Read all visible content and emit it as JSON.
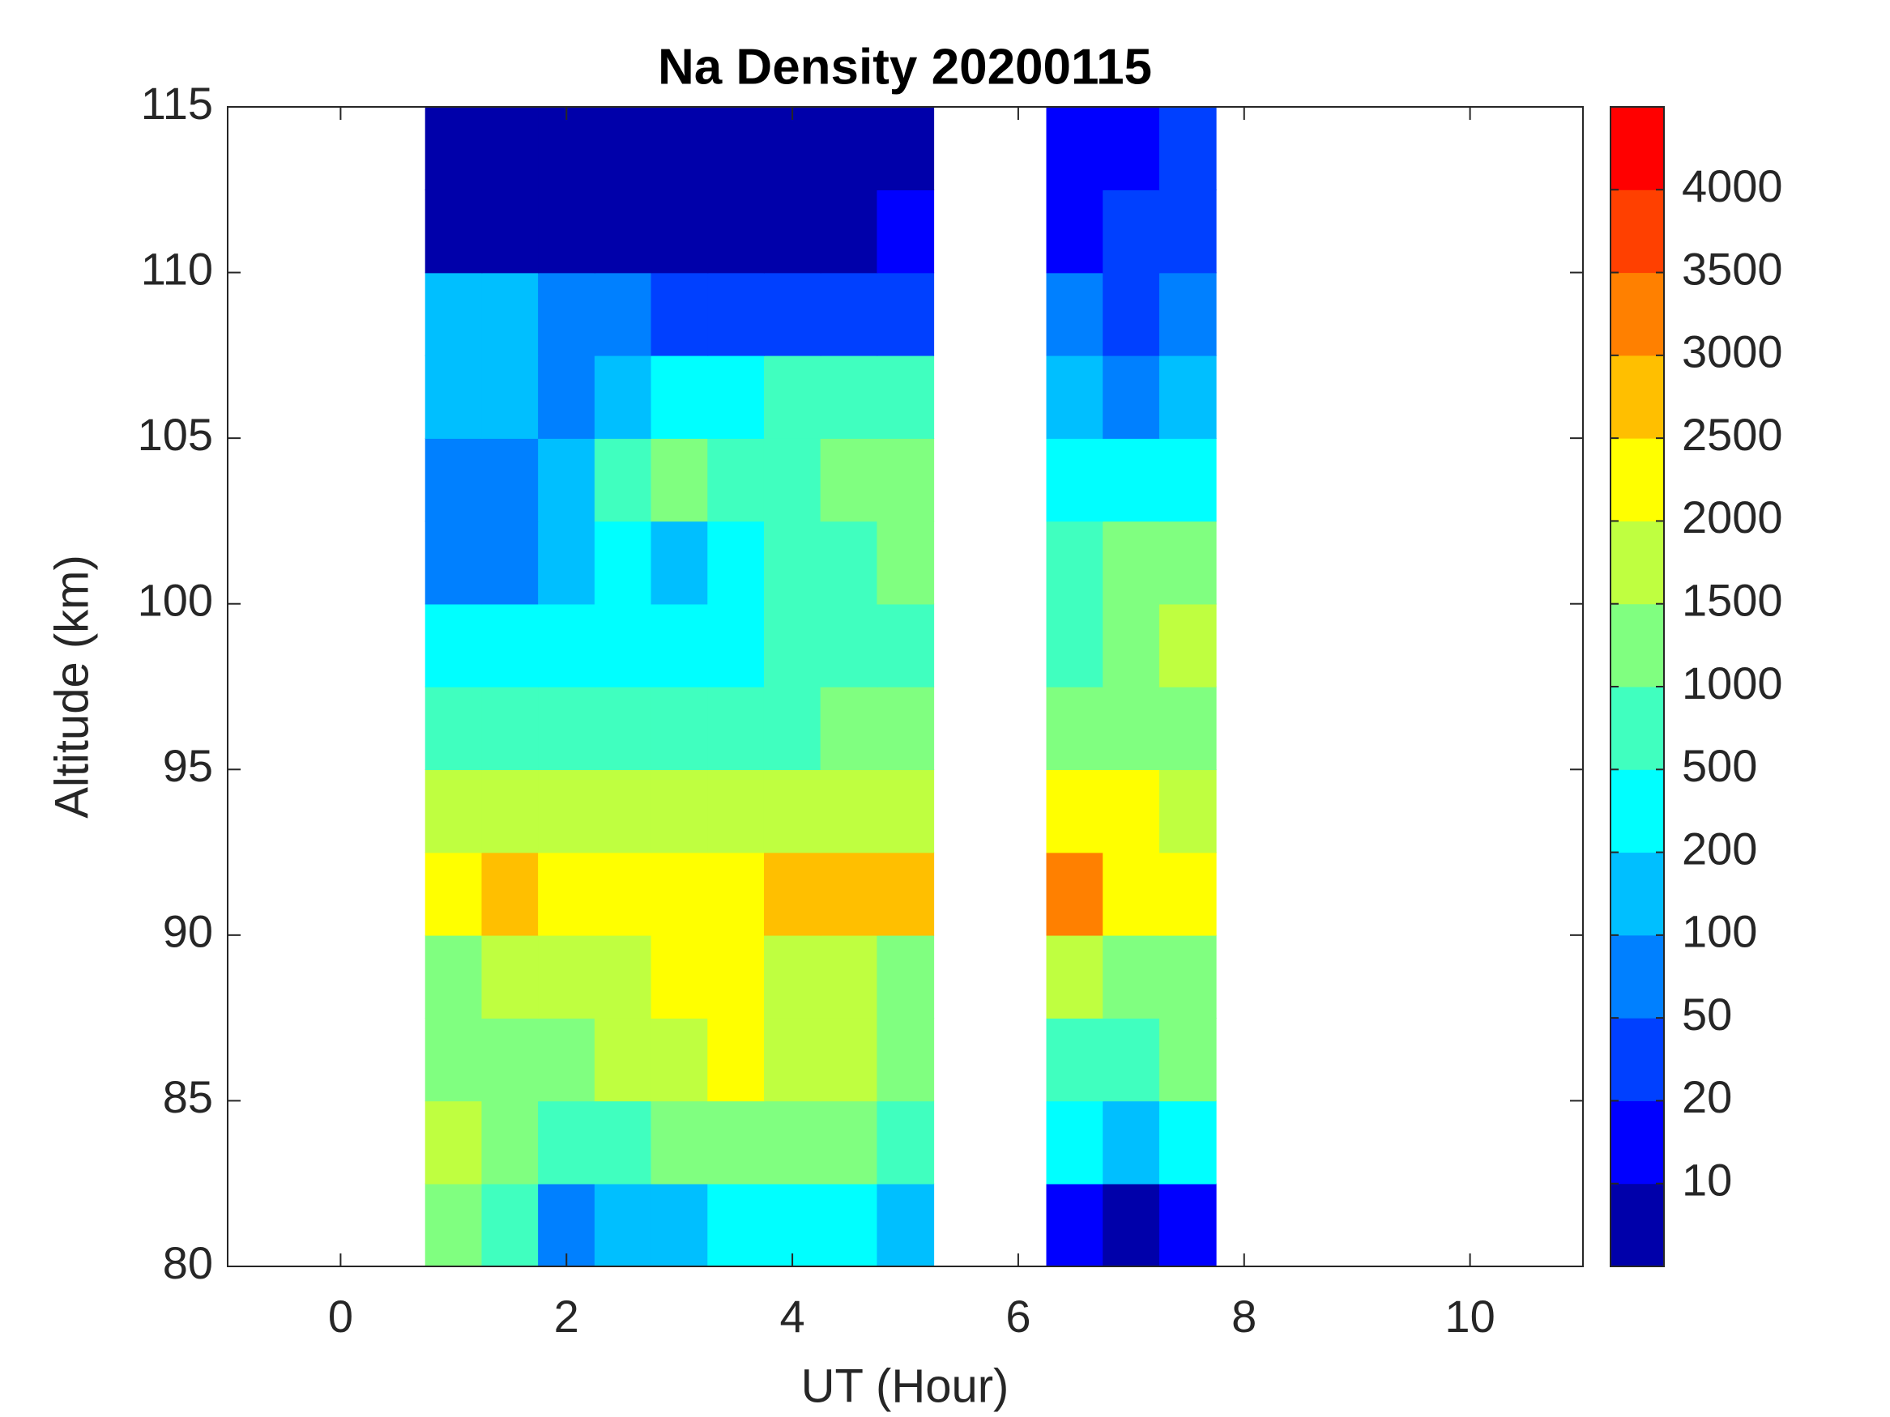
{
  "chart_data": {
    "type": "contour",
    "title": "Na Density 20200115",
    "x_label": "UT (Hour)",
    "y_label": "Altitude (km)",
    "xlim": [
      -1,
      11
    ],
    "xticks": [
      0,
      2,
      4,
      6,
      8,
      10
    ],
    "ylim": [
      80,
      115
    ],
    "yticks": [
      80,
      85,
      90,
      95,
      100,
      105,
      110,
      115
    ],
    "x": [
      1.0,
      1.5,
      2.0,
      2.5,
      3.0,
      3.5,
      4.0,
      4.5,
      5.0,
      6.5,
      7.0,
      7.5
    ],
    "y": [
      81.25,
      83.75,
      86.25,
      88.75,
      91.25,
      93.75,
      96.25,
      98.75,
      101.25,
      103.75,
      106.25,
      108.75,
      111.25,
      113.75
    ],
    "z": [
      [
        1200,
        700,
        70,
        150,
        150,
        300,
        300,
        300,
        150,
        15,
        5,
        15
      ],
      [
        1700,
        1200,
        700,
        700,
        1200,
        1200,
        1200,
        1200,
        700,
        300,
        150,
        300
      ],
      [
        1200,
        1200,
        1200,
        1700,
        1700,
        2200,
        1700,
        1700,
        1200,
        700,
        700,
        1200
      ],
      [
        1200,
        1700,
        1700,
        1700,
        2200,
        2200,
        1700,
        1700,
        1200,
        1700,
        1200,
        1200
      ],
      [
        2200,
        2700,
        2200,
        2200,
        2200,
        2200,
        2700,
        2700,
        2700,
        3200,
        2200,
        2200
      ],
      [
        1700,
        1700,
        1700,
        1700,
        1700,
        1700,
        1700,
        1700,
        1700,
        2200,
        2200,
        1700
      ],
      [
        700,
        700,
        700,
        700,
        700,
        700,
        700,
        1200,
        1200,
        1200,
        1200,
        1200
      ],
      [
        300,
        300,
        300,
        300,
        300,
        300,
        700,
        700,
        700,
        700,
        1200,
        1700
      ],
      [
        70,
        70,
        150,
        300,
        150,
        300,
        700,
        700,
        1200,
        700,
        1200,
        1200
      ],
      [
        70,
        70,
        150,
        700,
        1200,
        700,
        700,
        1200,
        1200,
        300,
        300,
        300
      ],
      [
        150,
        150,
        70,
        150,
        300,
        300,
        700,
        700,
        700,
        150,
        70,
        150
      ],
      [
        150,
        150,
        70,
        70,
        30,
        30,
        30,
        30,
        30,
        70,
        30,
        70
      ],
      [
        5,
        5,
        5,
        5,
        5,
        5,
        5,
        8,
        15,
        15,
        30,
        30
      ],
      [
        5,
        5,
        5,
        5,
        5,
        5,
        5,
        5,
        5,
        15,
        15,
        30
      ]
    ],
    "levels": [
      10,
      20,
      50,
      100,
      200,
      500,
      1000,
      1500,
      2000,
      2500,
      3000,
      3500,
      4000
    ],
    "colors": [
      "#0000aa",
      "#0000ff",
      "#0040ff",
      "#0080ff",
      "#00bfff",
      "#00ffff",
      "#40ffbf",
      "#80ff80",
      "#bfff40",
      "#ffff00",
      "#ffbf00",
      "#ff8000",
      "#ff4000",
      "#ff0000"
    ]
  }
}
